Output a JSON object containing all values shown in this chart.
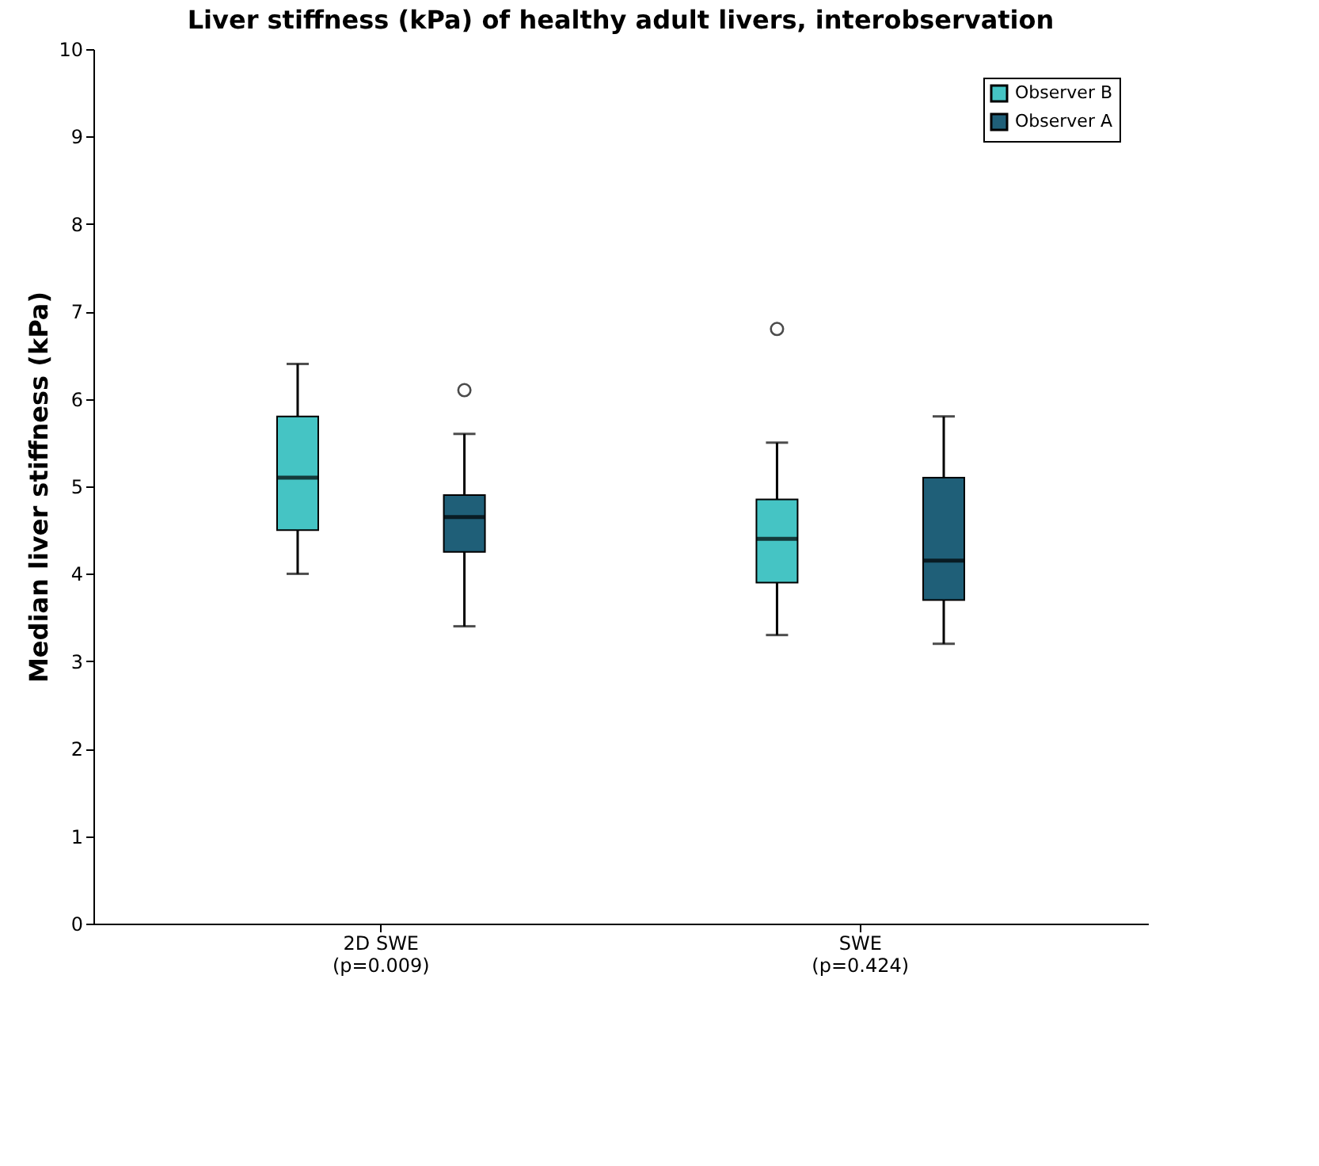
{
  "chart_data": {
    "type": "box",
    "title": "Liver stiffness (kPa) of healthy adult livers, interobservation",
    "ylabel": "Median liver stiffness (kPa)",
    "categories": [
      "2D SWE\n(p=0.009)",
      "SWE\n(p=0.424)"
    ],
    "series": [
      {
        "name": "Observer B",
        "color": "#45c4c4",
        "boxes": [
          {
            "low": 4.0,
            "q1": 4.5,
            "median": 5.1,
            "q3": 5.8,
            "high": 6.4
          },
          {
            "low": 3.3,
            "q1": 3.9,
            "median": 4.4,
            "q3": 4.85,
            "high": 5.5,
            "outliers": [
              6.8
            ]
          }
        ]
      },
      {
        "name": "Observer A",
        "color": "#1f5f78",
        "boxes": [
          {
            "low": 3.4,
            "q1": 4.25,
            "median": 4.65,
            "q3": 4.9,
            "high": 5.6,
            "outliers": [
              6.1
            ]
          },
          {
            "low": 3.2,
            "q1": 3.7,
            "median": 4.15,
            "q3": 5.1,
            "high": 5.8
          }
        ]
      }
    ],
    "ylim": [
      0,
      10
    ],
    "yticks": [
      0,
      1,
      2,
      3,
      4,
      5,
      6,
      7,
      8,
      9,
      10
    ],
    "grid": false,
    "legend": "top right"
  }
}
